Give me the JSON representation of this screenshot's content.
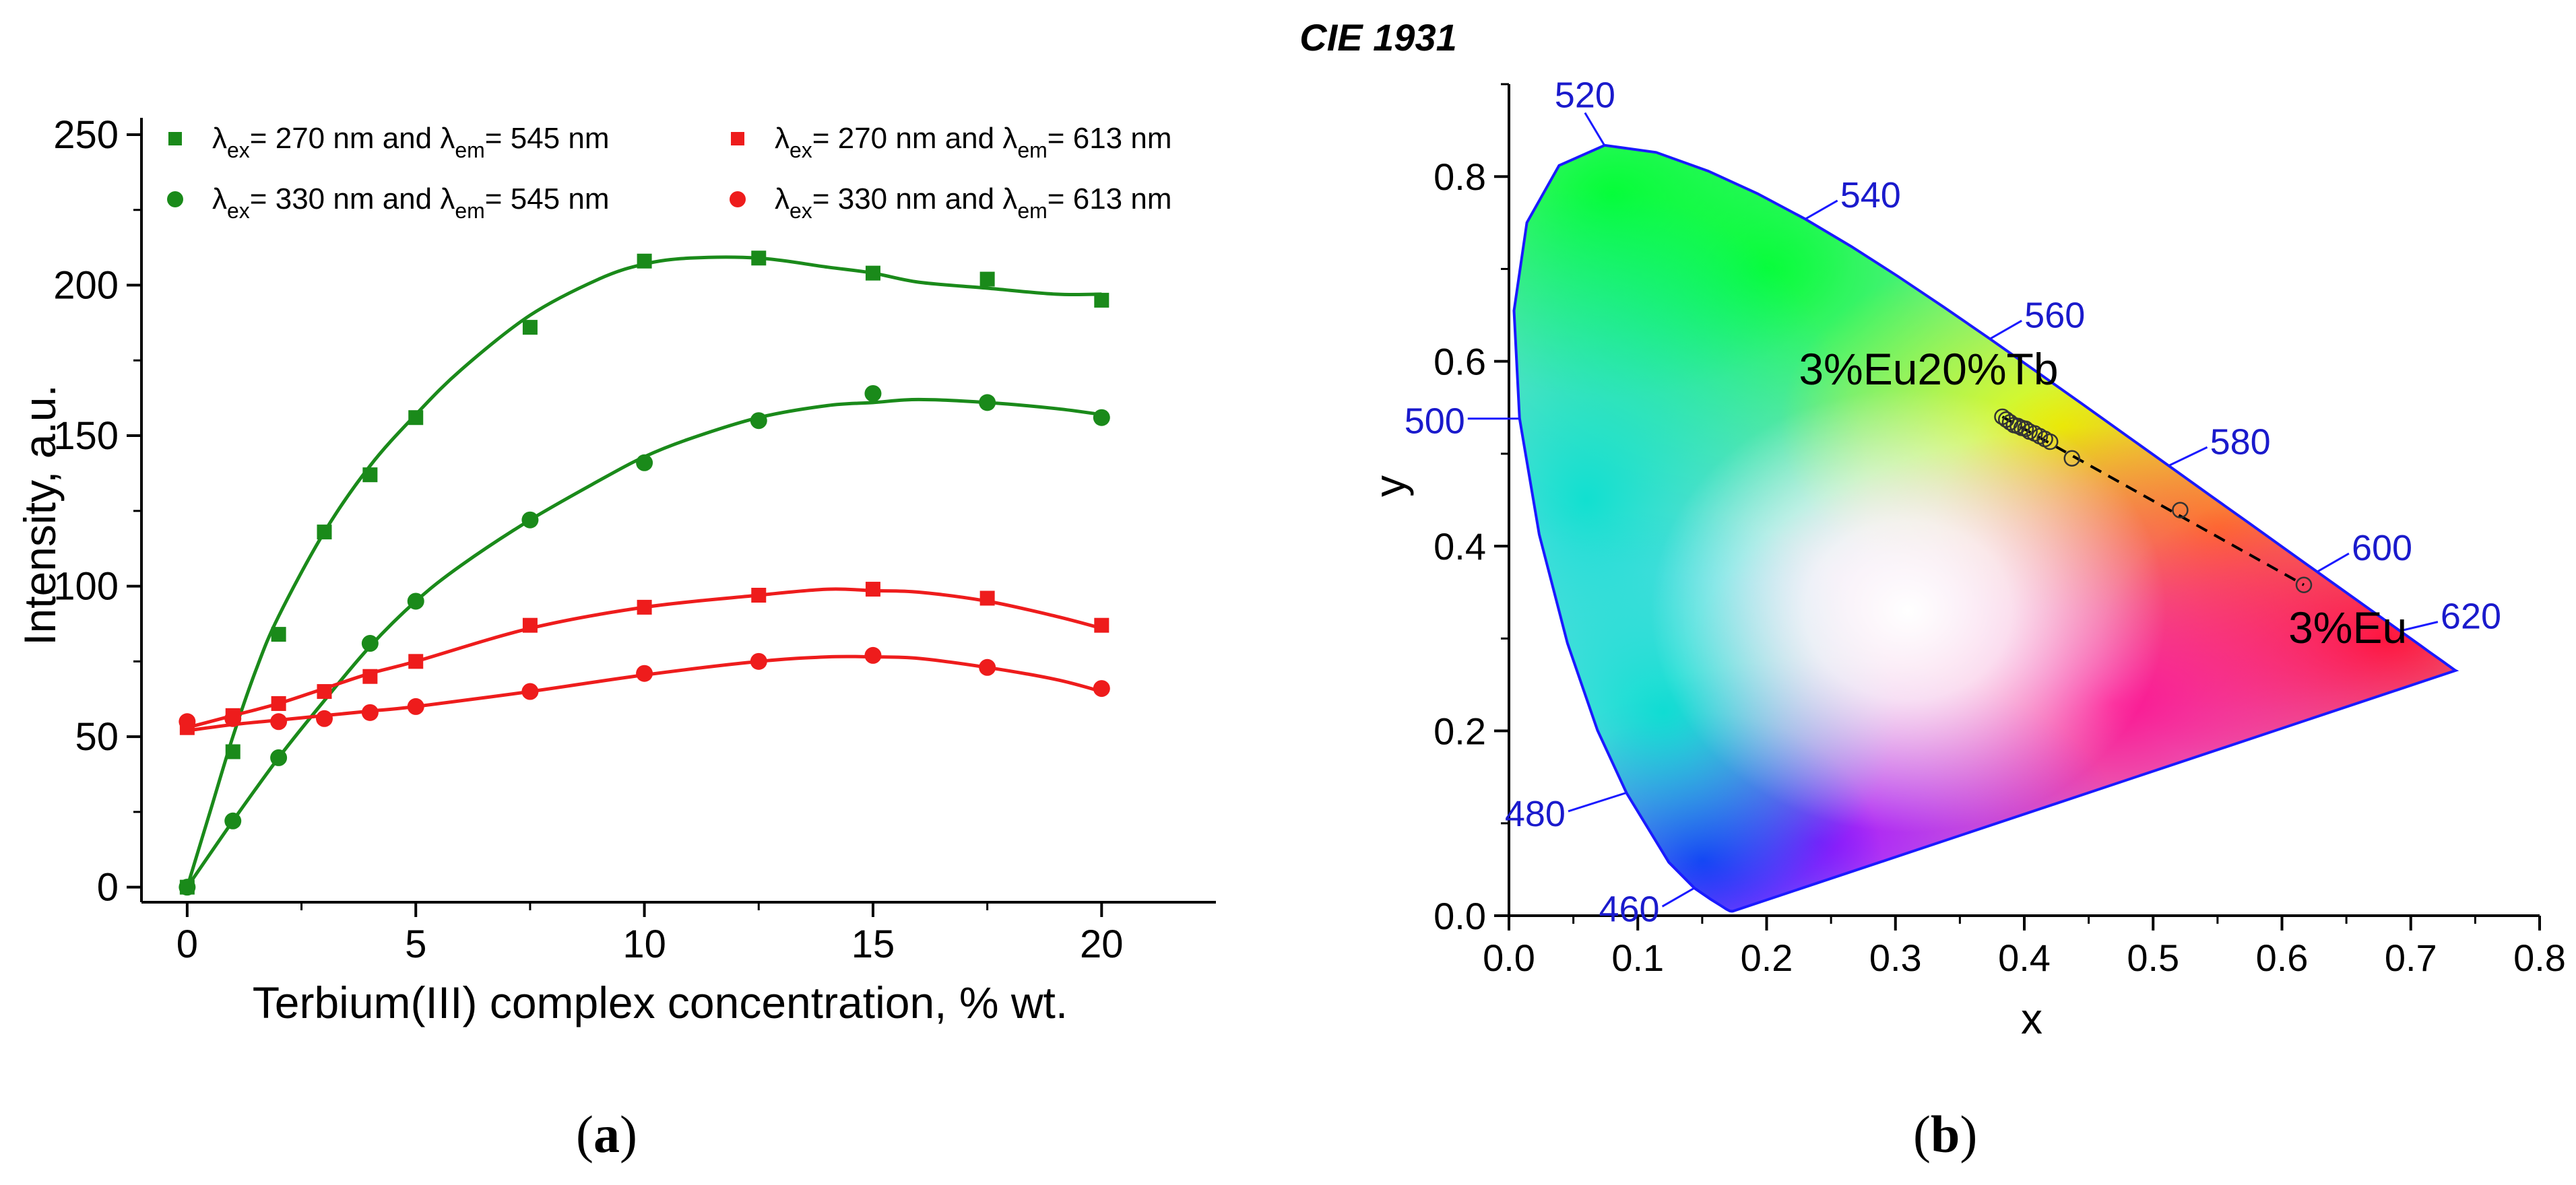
{
  "captions": {
    "a": "a",
    "b": "b"
  },
  "chart_data": [
    {
      "type": "scatter",
      "title": "",
      "xlabel": "Terbium(III) complex concentration, % wt.",
      "ylabel": "Intensity, a.u.",
      "xlim": [
        -1,
        22.5
      ],
      "ylim": [
        -5,
        250
      ],
      "xticks": [
        0,
        5,
        10,
        15,
        20
      ],
      "yticks": [
        0,
        50,
        100,
        150,
        200,
        250
      ],
      "legend_position": "top",
      "series": [
        {
          "name": "λex= 270 nm and λem= 545 nm",
          "ex": "270",
          "em": "545",
          "marker": "square",
          "color": "#1a8a1a",
          "x": [
            0,
            1,
            2,
            3,
            4,
            5,
            7.5,
            10,
            12.5,
            15,
            17.5,
            20
          ],
          "values": [
            0,
            45,
            84,
            118,
            137,
            156,
            186,
            208,
            209,
            204,
            202,
            195
          ],
          "fit": [
            [
              0,
              0
            ],
            [
              0.5,
              25
            ],
            [
              1,
              50
            ],
            [
              1.5,
              72
            ],
            [
              2,
              90
            ],
            [
              3,
              118
            ],
            [
              4,
              140
            ],
            [
              5,
              157
            ],
            [
              6,
              172
            ],
            [
              7.5,
              190
            ],
            [
              9,
              202
            ],
            [
              10,
              207
            ],
            [
              11,
              209
            ],
            [
              12.5,
              209
            ],
            [
              14,
              206
            ],
            [
              15,
              204
            ],
            [
              16,
              201
            ],
            [
              17.5,
              199
            ],
            [
              19,
              197
            ],
            [
              20,
              197
            ]
          ]
        },
        {
          "name": "λex= 330 nm and λem= 545 nm",
          "ex": "330",
          "em": "545",
          "marker": "circle",
          "color": "#1a8a1a",
          "x": [
            0,
            1,
            2,
            4,
            5,
            7.5,
            10,
            12.5,
            15,
            17.5,
            20
          ],
          "values": [
            0,
            22,
            43,
            81,
            95,
            122,
            141,
            155,
            164,
            161,
            156
          ],
          "fit": [
            [
              0,
              0
            ],
            [
              1,
              22
            ],
            [
              2,
              43
            ],
            [
              3,
              62
            ],
            [
              4,
              80
            ],
            [
              5,
              95
            ],
            [
              6,
              107
            ],
            [
              7.5,
              122
            ],
            [
              9,
              135
            ],
            [
              10,
              143
            ],
            [
              11,
              149
            ],
            [
              12.5,
              156
            ],
            [
              14,
              160
            ],
            [
              15,
              161
            ],
            [
              16,
              162
            ],
            [
              17.5,
              161
            ],
            [
              19,
              159
            ],
            [
              20,
              157
            ]
          ]
        },
        {
          "name": "λex= 270 nm and λem= 613 nm",
          "ex": "270",
          "em": "613",
          "marker": "square",
          "color": "#ee1c1c",
          "x": [
            0,
            1,
            2,
            3,
            4,
            5,
            7.5,
            10,
            12.5,
            15,
            17.5,
            20
          ],
          "values": [
            53,
            57,
            61,
            65,
            70,
            75,
            87,
            93,
            97,
            99,
            96,
            87
          ],
          "fit": [
            [
              0,
              53
            ],
            [
              1,
              57
            ],
            [
              2,
              61
            ],
            [
              3,
              66
            ],
            [
              4,
              71
            ],
            [
              5,
              75
            ],
            [
              7.5,
              86
            ],
            [
              10,
              93
            ],
            [
              12.5,
              97
            ],
            [
              14,
              99
            ],
            [
              15,
              98.5
            ],
            [
              16,
              98
            ],
            [
              17.5,
              95
            ],
            [
              19,
              90
            ],
            [
              20,
              86
            ]
          ]
        },
        {
          "name": "λex= 330 nm and λem= 613 nm",
          "ex": "330",
          "em": "613",
          "marker": "circle",
          "color": "#ee1c1c",
          "x": [
            0,
            1,
            2,
            3,
            4,
            5,
            7.5,
            10,
            12.5,
            15,
            17.5,
            20
          ],
          "values": [
            55,
            56,
            55,
            56,
            58,
            60,
            65,
            71,
            75,
            77,
            73,
            66
          ],
          "fit": [
            [
              0,
              52
            ],
            [
              1,
              54
            ],
            [
              2,
              55.5
            ],
            [
              3,
              57
            ],
            [
              4,
              58.5
            ],
            [
              5,
              60
            ],
            [
              7.5,
              65
            ],
            [
              10,
              70.5
            ],
            [
              12.5,
              75
            ],
            [
              14,
              76.5
            ],
            [
              15,
              76.5
            ],
            [
              16,
              76
            ],
            [
              17.5,
              73
            ],
            [
              19,
              69
            ],
            [
              20,
              65
            ]
          ]
        }
      ]
    },
    {
      "type": "scatter",
      "title": "CIE 1931",
      "xlabel": "x",
      "ylabel": "y",
      "xlim": [
        0,
        0.8
      ],
      "ylim": [
        0,
        0.9
      ],
      "xticks": [
        "0.0",
        "0.1",
        "0.2",
        "0.3",
        "0.4",
        "0.5",
        "0.6",
        "0.7",
        "0.8"
      ],
      "yticks": [
        "0.0",
        "0.2",
        "0.4",
        "0.6",
        "0.8"
      ],
      "wavelength_labels": [
        {
          "label": "460",
          "x": 0.144,
          "y": 0.03,
          "dx": -0.025,
          "dy": -0.02
        },
        {
          "label": "480",
          "x": 0.091,
          "y": 0.133,
          "dx": -0.045,
          "dy": -0.02
        },
        {
          "label": "500",
          "x": 0.008,
          "y": 0.538,
          "dx": -0.04,
          "dy": 0.0
        },
        {
          "label": "520",
          "x": 0.074,
          "y": 0.834,
          "dx": -0.015,
          "dy": 0.035
        },
        {
          "label": "540",
          "x": 0.23,
          "y": 0.754,
          "dx": 0.025,
          "dy": 0.02
        },
        {
          "label": "560",
          "x": 0.373,
          "y": 0.624,
          "dx": 0.025,
          "dy": 0.02
        },
        {
          "label": "580",
          "x": 0.512,
          "y": 0.487,
          "dx": 0.03,
          "dy": 0.02
        },
        {
          "label": "600",
          "x": 0.627,
          "y": 0.372,
          "dx": 0.025,
          "dy": 0.02
        },
        {
          "label": "620",
          "x": 0.691,
          "y": 0.308,
          "dx": 0.03,
          "dy": 0.01
        }
      ],
      "point_labels": [
        {
          "text": "3%Eu20%Tb",
          "x": 0.225,
          "y": 0.575
        },
        {
          "text": "3%Eu",
          "x": 0.605,
          "y": 0.295
        }
      ],
      "points": {
        "x": [
          0.383,
          0.386,
          0.389,
          0.392,
          0.395,
          0.398,
          0.401,
          0.404,
          0.408,
          0.412,
          0.416,
          0.42,
          0.437,
          0.521,
          0.617
        ],
        "y": [
          0.54,
          0.537,
          0.534,
          0.531,
          0.53,
          0.528,
          0.527,
          0.524,
          0.522,
          0.519,
          0.516,
          0.513,
          0.495,
          0.439,
          0.358
        ]
      },
      "locus": [
        [
          0.1741,
          0.005
        ],
        [
          0.1738,
          0.0049
        ],
        [
          0.1733,
          0.0048
        ],
        [
          0.1726,
          0.0048
        ],
        [
          0.1714,
          0.0051
        ],
        [
          0.1689,
          0.0069
        ],
        [
          0.1644,
          0.0109
        ],
        [
          0.1566,
          0.0177
        ],
        [
          0.144,
          0.0297
        ],
        [
          0.1241,
          0.0578
        ],
        [
          0.0913,
          0.1327
        ],
        [
          0.0687,
          0.2007
        ],
        [
          0.0454,
          0.295
        ],
        [
          0.0235,
          0.4127
        ],
        [
          0.0082,
          0.5384
        ],
        [
          0.0039,
          0.6548
        ],
        [
          0.0139,
          0.7502
        ],
        [
          0.0389,
          0.812
        ],
        [
          0.0743,
          0.8338
        ],
        [
          0.1142,
          0.8262
        ],
        [
          0.1547,
          0.8059
        ],
        [
          0.1929,
          0.7816
        ],
        [
          0.2296,
          0.7543
        ],
        [
          0.2658,
          0.7243
        ],
        [
          0.3016,
          0.6923
        ],
        [
          0.3373,
          0.6589
        ],
        [
          0.3731,
          0.6245
        ],
        [
          0.4087,
          0.5896
        ],
        [
          0.4441,
          0.5547
        ],
        [
          0.4788,
          0.5202
        ],
        [
          0.5125,
          0.4866
        ],
        [
          0.5448,
          0.4544
        ],
        [
          0.5752,
          0.4242
        ],
        [
          0.6029,
          0.3965
        ],
        [
          0.627,
          0.3725
        ],
        [
          0.6482,
          0.3514
        ],
        [
          0.6658,
          0.334
        ],
        [
          0.6801,
          0.3197
        ],
        [
          0.6915,
          0.3083
        ],
        [
          0.7006,
          0.2993
        ],
        [
          0.7079,
          0.292
        ],
        [
          0.714,
          0.2859
        ],
        [
          0.719,
          0.2809
        ],
        [
          0.723,
          0.277
        ],
        [
          0.726,
          0.274
        ],
        [
          0.7283,
          0.2717
        ],
        [
          0.73,
          0.27
        ],
        [
          0.7311,
          0.2689
        ],
        [
          0.732,
          0.268
        ],
        [
          0.7327,
          0.2673
        ],
        [
          0.7334,
          0.2666
        ],
        [
          0.734,
          0.266
        ],
        [
          0.7344,
          0.2656
        ],
        [
          0.7346,
          0.2654
        ],
        [
          0.7347,
          0.2653
        ]
      ]
    }
  ]
}
